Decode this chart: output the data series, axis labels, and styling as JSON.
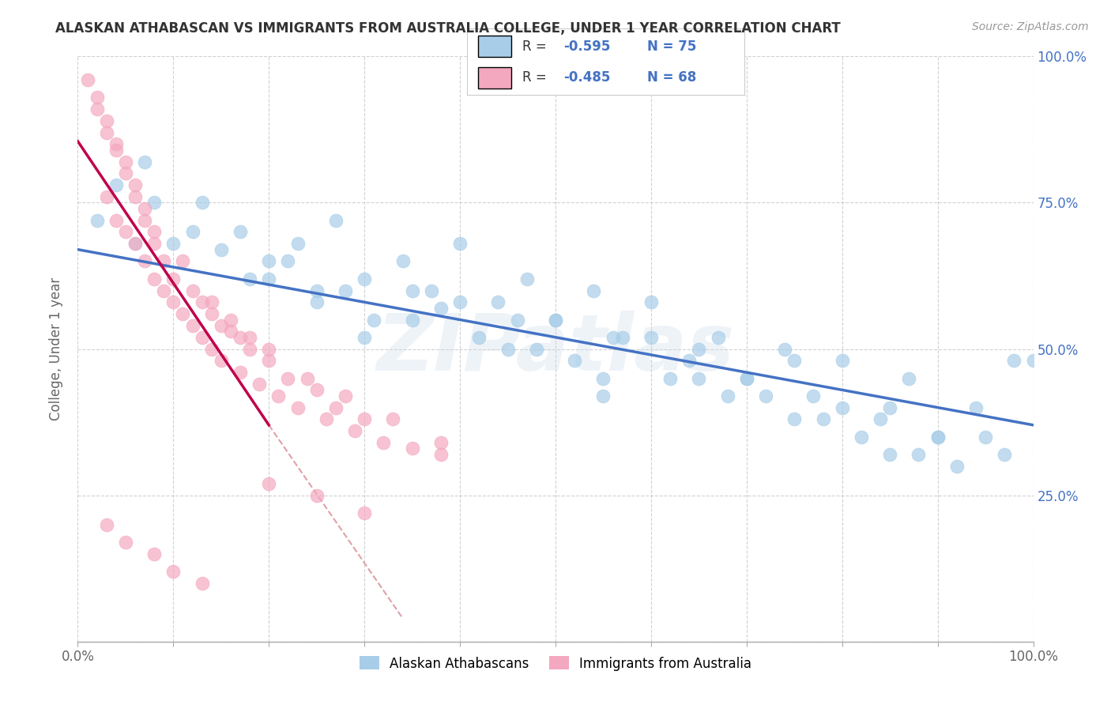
{
  "title": "ALASKAN ATHABASCAN VS IMMIGRANTS FROM AUSTRALIA COLLEGE, UNDER 1 YEAR CORRELATION CHART",
  "source_text": "Source: ZipAtlas.com",
  "ylabel": "College, Under 1 year",
  "legend_r1": "R = -0.595",
  "legend_n1": "N = 75",
  "legend_r2": "R = -0.485",
  "legend_n2": "N = 68",
  "legend_label1": "Alaskan Athabascans",
  "legend_label2": "Immigrants from Australia",
  "blue_color": "#A8CDE8",
  "pink_color": "#F4A8C0",
  "blue_line_color": "#4472C4",
  "pink_line_color": "#C0004A",
  "dashed_line_color": "#E0A0A8",
  "watermark": "ZIPatlas",
  "blue_scatter_x": [
    0.02,
    0.04,
    0.07,
    0.1,
    0.13,
    0.17,
    0.2,
    0.23,
    0.27,
    0.3,
    0.34,
    0.37,
    0.4,
    0.44,
    0.47,
    0.5,
    0.54,
    0.57,
    0.6,
    0.64,
    0.67,
    0.7,
    0.74,
    0.77,
    0.8,
    0.84,
    0.87,
    0.9,
    0.94,
    0.97,
    0.15,
    0.18,
    0.22,
    0.25,
    0.12,
    0.08,
    0.31,
    0.35,
    0.42,
    0.46,
    0.52,
    0.56,
    0.62,
    0.65,
    0.72,
    0.75,
    0.82,
    0.85,
    0.92,
    0.95,
    0.38,
    0.48,
    0.55,
    0.68,
    0.78,
    0.88,
    0.98,
    0.06,
    0.28,
    0.6,
    0.7,
    0.8,
    0.9,
    1.0,
    0.5,
    0.4,
    0.2,
    0.3,
    0.75,
    0.85,
    0.65,
    0.45,
    0.55,
    0.35,
    0.25
  ],
  "blue_scatter_y": [
    0.72,
    0.78,
    0.82,
    0.68,
    0.75,
    0.7,
    0.65,
    0.68,
    0.72,
    0.62,
    0.65,
    0.6,
    0.68,
    0.58,
    0.62,
    0.55,
    0.6,
    0.52,
    0.58,
    0.48,
    0.52,
    0.45,
    0.5,
    0.42,
    0.48,
    0.38,
    0.45,
    0.35,
    0.4,
    0.32,
    0.67,
    0.62,
    0.65,
    0.58,
    0.7,
    0.75,
    0.55,
    0.6,
    0.52,
    0.55,
    0.48,
    0.52,
    0.45,
    0.5,
    0.42,
    0.48,
    0.35,
    0.4,
    0.3,
    0.35,
    0.57,
    0.5,
    0.45,
    0.42,
    0.38,
    0.32,
    0.48,
    0.68,
    0.6,
    0.52,
    0.45,
    0.4,
    0.35,
    0.48,
    0.55,
    0.58,
    0.62,
    0.52,
    0.38,
    0.32,
    0.45,
    0.5,
    0.42,
    0.55,
    0.6
  ],
  "pink_scatter_x": [
    0.01,
    0.02,
    0.02,
    0.03,
    0.03,
    0.04,
    0.04,
    0.05,
    0.05,
    0.06,
    0.06,
    0.07,
    0.07,
    0.08,
    0.08,
    0.09,
    0.1,
    0.11,
    0.12,
    0.13,
    0.14,
    0.15,
    0.16,
    0.17,
    0.18,
    0.2,
    0.22,
    0.25,
    0.27,
    0.3,
    0.03,
    0.04,
    0.05,
    0.06,
    0.07,
    0.08,
    0.09,
    0.1,
    0.11,
    0.12,
    0.13,
    0.14,
    0.15,
    0.17,
    0.19,
    0.21,
    0.23,
    0.26,
    0.29,
    0.32,
    0.35,
    0.38,
    0.14,
    0.16,
    0.18,
    0.2,
    0.24,
    0.28,
    0.33,
    0.38,
    0.2,
    0.25,
    0.3,
    0.03,
    0.05,
    0.08,
    0.1,
    0.13
  ],
  "pink_scatter_y": [
    0.96,
    0.93,
    0.91,
    0.89,
    0.87,
    0.85,
    0.84,
    0.82,
    0.8,
    0.78,
    0.76,
    0.74,
    0.72,
    0.7,
    0.68,
    0.65,
    0.62,
    0.65,
    0.6,
    0.58,
    0.56,
    0.54,
    0.53,
    0.52,
    0.5,
    0.48,
    0.45,
    0.43,
    0.4,
    0.38,
    0.76,
    0.72,
    0.7,
    0.68,
    0.65,
    0.62,
    0.6,
    0.58,
    0.56,
    0.54,
    0.52,
    0.5,
    0.48,
    0.46,
    0.44,
    0.42,
    0.4,
    0.38,
    0.36,
    0.34,
    0.33,
    0.32,
    0.58,
    0.55,
    0.52,
    0.5,
    0.45,
    0.42,
    0.38,
    0.34,
    0.27,
    0.25,
    0.22,
    0.2,
    0.17,
    0.15,
    0.12,
    0.1
  ],
  "blue_line_x0": 0.0,
  "blue_line_x1": 1.0,
  "blue_line_y0": 0.67,
  "blue_line_y1": 0.37,
  "pink_line_x0": 0.0,
  "pink_line_x1": 0.2,
  "pink_line_y0": 0.855,
  "pink_line_y1": 0.37,
  "dash_line_x0": 0.2,
  "dash_line_x1": 0.34,
  "dash_line_y0": 0.37,
  "dash_line_y1": 0.04,
  "xmin": 0.0,
  "xmax": 1.0,
  "ymin": 0.0,
  "ymax": 1.0,
  "ytick_values": [
    0.0,
    0.25,
    0.5,
    0.75,
    1.0
  ],
  "ytick_labels_right": [
    "",
    "25.0%",
    "50.0%",
    "75.0%",
    "100.0%"
  ],
  "xtick_values": [
    0.0,
    0.1,
    0.2,
    0.3,
    0.4,
    0.5,
    0.6,
    0.7,
    0.8,
    0.9,
    1.0
  ],
  "xtick_major_labels": {
    "0.0": "0.0%",
    "1.0": "100.0%"
  },
  "grid_color": "#CCCCCC",
  "background_color": "#FFFFFF",
  "title_color": "#333333",
  "source_color": "#999999",
  "ylabel_color": "#666666",
  "right_tick_color": "#4472C4"
}
